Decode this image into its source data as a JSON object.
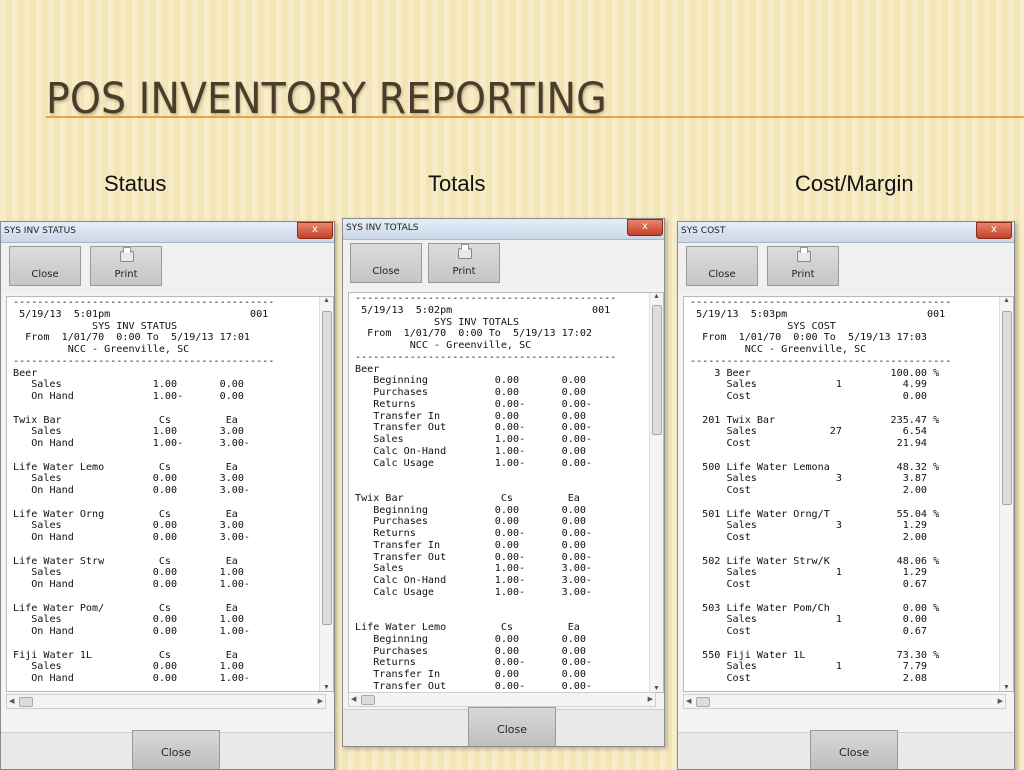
{
  "slide": {
    "title": "POS INVENTORY REPORTING",
    "labels": [
      "Status",
      "Totals",
      "Cost/Margin"
    ]
  },
  "windows": [
    {
      "title": "SYS INV STATUS",
      "close_x": "x",
      "toolbar": {
        "close_label": "Close",
        "print_label": "Print"
      },
      "footer_close": "Close",
      "report_lines": [
        "-------------------------------------------",
        " 5/19/13  5:01pm                       001",
        "             SYS INV STATUS",
        "  From  1/01/70  0:00 To  5/19/13 17:01",
        "         NCC - Greenville, SC",
        "-------------------------------------------",
        "Beer",
        "   Sales               1.00       0.00",
        "   On Hand             1.00-      0.00",
        "",
        "Twix Bar                Cs         Ea",
        "   Sales               1.00       3.00",
        "   On Hand             1.00-      3.00-",
        "",
        "Life Water Lemo         Cs         Ea",
        "   Sales               0.00       3.00",
        "   On Hand             0.00       3.00-",
        "",
        "Life Water Orng         Cs         Ea",
        "   Sales               0.00       3.00",
        "   On Hand             0.00       3.00-",
        "",
        "Life Water Strw         Cs         Ea",
        "   Sales               0.00       1.00",
        "   On Hand             0.00       1.00-",
        "",
        "Life Water Pom/         Cs         Ea",
        "   Sales               0.00       1.00",
        "   On Hand             0.00       1.00-",
        "",
        "Fiji Water 1L           Cs         Ea",
        "   Sales               0.00       1.00",
        "   On Hand             0.00       1.00-"
      ]
    },
    {
      "title": "SYS INV TOTALS",
      "close_x": "x",
      "toolbar": {
        "close_label": "Close",
        "print_label": "Print"
      },
      "footer_close": "Close",
      "report_lines": [
        "-------------------------------------------",
        " 5/19/13  5:02pm                       001",
        "             SYS INV TOTALS",
        "  From  1/01/70  0:00 To  5/19/13 17:02",
        "         NCC - Greenville, SC",
        "-------------------------------------------",
        "Beer",
        "   Beginning           0.00       0.00",
        "   Purchases           0.00       0.00",
        "   Returns             0.00-      0.00-",
        "   Transfer In         0.00       0.00",
        "   Transfer Out        0.00-      0.00-",
        "   Sales               1.00-      0.00-",
        "   Calc On-Hand        1.00-      0.00",
        "   Calc Usage          1.00-      0.00-",
        "",
        "",
        "Twix Bar                Cs         Ea",
        "   Beginning           0.00       0.00",
        "   Purchases           0.00       0.00",
        "   Returns             0.00-      0.00-",
        "   Transfer In         0.00       0.00",
        "   Transfer Out        0.00-      0.00-",
        "   Sales               1.00-      3.00-",
        "   Calc On-Hand        1.00-      3.00-",
        "   Calc Usage          1.00-      3.00-",
        "",
        "",
        "Life Water Lemo         Cs         Ea",
        "   Beginning           0.00       0.00",
        "   Purchases           0.00       0.00",
        "   Returns             0.00-      0.00-",
        "   Transfer In         0.00       0.00",
        "   Transfer Out        0.00-      0.00-"
      ]
    },
    {
      "title": "SYS COST",
      "close_x": "x",
      "toolbar": {
        "close_label": "Close",
        "print_label": "Print"
      },
      "footer_close": "Close",
      "report_lines": [
        "-------------------------------------------",
        " 5/19/13  5:03pm                       001",
        "                SYS COST",
        "  From  1/01/70  0:00 To  5/19/13 17:03",
        "         NCC - Greenville, SC",
        "-------------------------------------------",
        "    3 Beer                       100.00 %",
        "      Sales             1          4.99",
        "      Cost                         0.00",
        "",
        "  201 Twix Bar                   235.47 %",
        "      Sales            27          6.54",
        "      Cost                        21.94",
        "",
        "  500 Life Water Lemona           48.32 %",
        "      Sales             3          3.87",
        "      Cost                         2.00",
        "",
        "  501 Life Water Orng/T           55.04 %",
        "      Sales             3          1.29",
        "      Cost                         2.00",
        "",
        "  502 Life Water Strw/K           48.06 %",
        "      Sales             1          1.29",
        "      Cost                         0.67",
        "",
        "  503 Life Water Pom/Ch            0.00 %",
        "      Sales             1          0.00",
        "      Cost                         0.67",
        "",
        "  550 Fiji Water 1L               73.30 %",
        "      Sales             1          7.79",
        "      Cost                         2.08"
      ]
    }
  ],
  "icons": {
    "print": "printer-icon",
    "scroll_up": "arrow-up-icon",
    "scroll_down": "arrow-down-icon",
    "scroll_left": "arrow-left-icon",
    "scroll_right": "arrow-right-icon"
  }
}
